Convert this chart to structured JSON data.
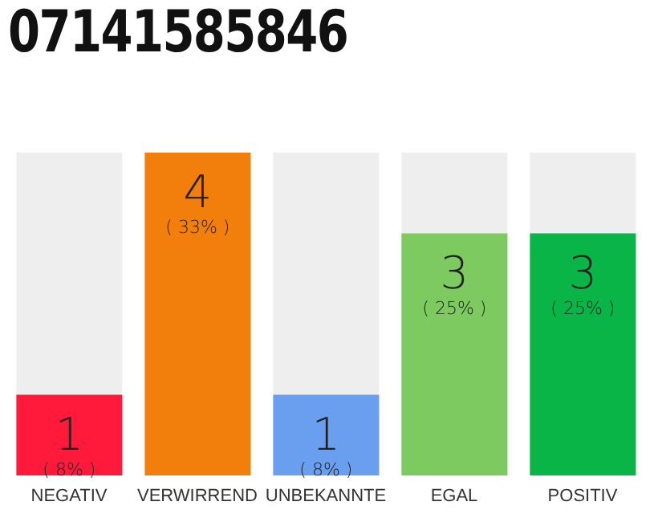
{
  "chart_data": {
    "type": "bar",
    "title": "07141585846",
    "categories": [
      "NEGATIV",
      "VERWIRREND",
      "UNBEKANNTE",
      "EGAL",
      "POSITIV"
    ],
    "values": [
      1,
      4,
      1,
      3,
      3
    ],
    "colors": [
      "#ff1a3c",
      "#f27f0c",
      "#6a9ff0",
      "#7dcb60",
      "#0ab548"
    ],
    "tick_labels": "x",
    "grid": false,
    "legend": false,
    "value_labels": [
      "1\n( 8% )",
      "4\n( 33% )",
      "1\n( 8% )",
      "3\n( 25% )",
      "3\n( 25% )"
    ]
  }
}
